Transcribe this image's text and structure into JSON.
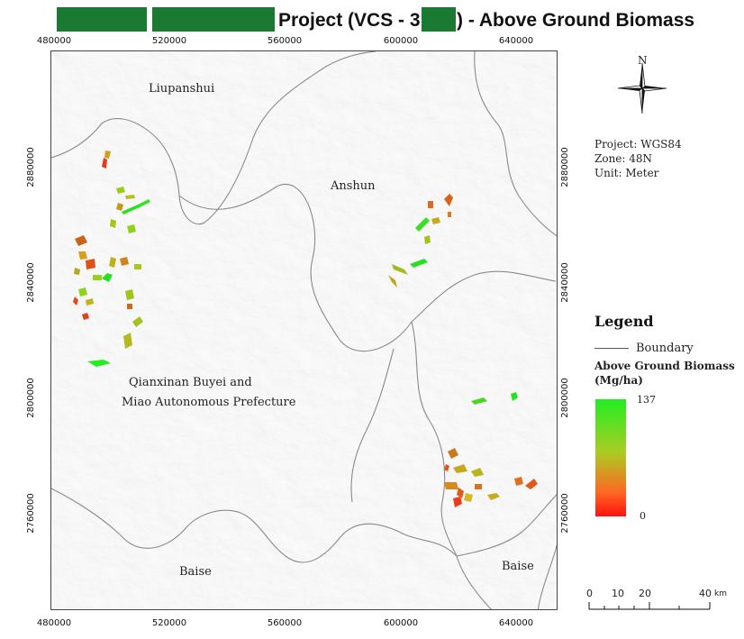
{
  "title": {
    "text": "Project (VCS - 3",
    "suffix": ") - Above Ground Biomass",
    "redaction_color": "#1a7a32"
  },
  "axes": {
    "x_ticks": [
      "480000",
      "520000",
      "560000",
      "600000",
      "640000"
    ],
    "y_ticks": [
      "2880000",
      "2840000",
      "2800000",
      "2760000"
    ]
  },
  "places": {
    "liupanshui": "Liupanshui",
    "anshun": "Anshun",
    "qianxinan_1": "Qianxinan Buyei and",
    "qianxinan_2": "Miao Autonomous Prefecture",
    "baise_west": "Baise",
    "baise_east": "Baise"
  },
  "north_label": "N",
  "projection": {
    "project": "Project: WGS84",
    "zone": "Zone: 48N",
    "unit": "Unit: Meter"
  },
  "legend": {
    "title": "Legend",
    "boundary": "Boundary",
    "biomass_label": "Above Ground Biomass",
    "biomass_unit": "(Mg/ha)",
    "max": "137",
    "min": "0",
    "color_high": "#22ee22",
    "color_low": "#ff1111"
  },
  "scalebar": {
    "labels": [
      "0",
      "10",
      "20",
      "40"
    ],
    "unit": "km"
  }
}
